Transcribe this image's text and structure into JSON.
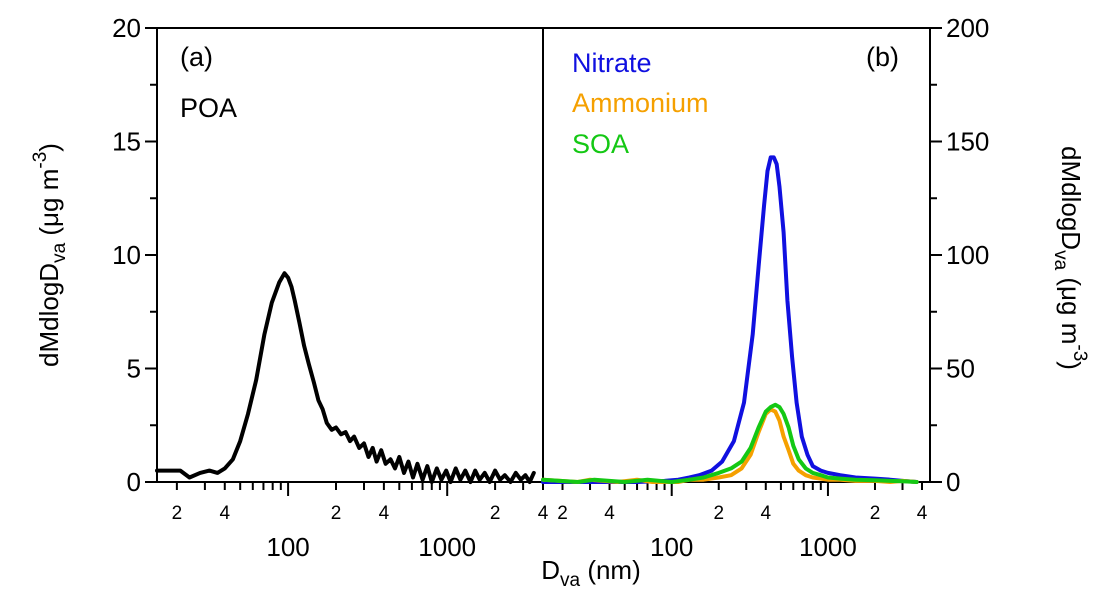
{
  "chart_data": [
    {
      "type": "line",
      "panel_label": "(a)",
      "annotation": "POA",
      "x_scale": "log",
      "xlim": [
        15,
        4000
      ],
      "ylim": [
        0,
        20
      ],
      "yticks": [
        0,
        5,
        10,
        15,
        20
      ],
      "ylabel": {
        "main": "dMdlogD",
        "sub": "va",
        "units_pre": " (μg m",
        "sup": "-3",
        "units_post": ")"
      },
      "x_major_labels": [
        "100",
        "1000"
      ],
      "x_minor_labels": [
        "2",
        "4",
        "2",
        "4",
        "2",
        "4"
      ],
      "series": [
        {
          "name": "POA",
          "color": "#000000",
          "x": [
            15,
            18,
            21,
            24,
            28,
            32,
            36,
            40,
            45,
            50,
            56,
            63,
            71,
            79,
            88,
            95,
            100,
            105,
            110,
            118,
            126,
            135,
            145,
            155,
            165,
            175,
            188,
            200,
            215,
            230,
            245,
            260,
            280,
            300,
            320,
            340,
            360,
            385,
            410,
            440,
            470,
            500,
            535,
            570,
            610,
            650,
            700,
            750,
            800,
            860,
            920,
            985,
            1050,
            1130,
            1210,
            1300,
            1400,
            1500,
            1600,
            1720,
            1850,
            2000,
            2150,
            2300,
            2500,
            2700,
            2900,
            3100,
            3300,
            3500
          ],
          "y": [
            0.5,
            0.5,
            0.5,
            0.2,
            0.4,
            0.5,
            0.4,
            0.6,
            1.0,
            1.8,
            3.0,
            4.5,
            6.5,
            7.9,
            8.8,
            9.2,
            9.0,
            8.6,
            8.0,
            7.0,
            6.0,
            5.2,
            4.4,
            3.6,
            3.2,
            2.6,
            2.3,
            2.4,
            2.1,
            2.2,
            1.8,
            2.0,
            1.5,
            1.7,
            1.1,
            1.5,
            0.9,
            1.4,
            0.8,
            1.0,
            0.6,
            1.1,
            0.4,
            0.9,
            0.2,
            0.8,
            0.1,
            0.7,
            0.0,
            0.6,
            0.1,
            0.5,
            0.0,
            0.6,
            0.1,
            0.5,
            0.0,
            0.5,
            0.1,
            0.4,
            0.0,
            0.5,
            0.1,
            0.3,
            0.0,
            0.4,
            0.1,
            0.3,
            0.0,
            0.4
          ]
        }
      ]
    },
    {
      "type": "line",
      "panel_label": "(b)",
      "x_scale": "log",
      "xlim": [
        15,
        4500
      ],
      "ylim": [
        0,
        200
      ],
      "yticks": [
        0,
        50,
        100,
        150,
        200
      ],
      "ylabel": {
        "main": "dMdlogD",
        "sub": "va",
        "units_pre": " (μg m",
        "sup": "-3",
        "units_post": ")"
      },
      "x_major_labels": [
        "100",
        "1000"
      ],
      "x_minor_labels": [
        "2",
        "4",
        "2",
        "4",
        "2",
        "4"
      ],
      "series": [
        {
          "name": "Nitrate",
          "color": "#1010e0",
          "x": [
            15,
            30,
            60,
            90,
            110,
            130,
            150,
            180,
            210,
            250,
            290,
            330,
            360,
            390,
            410,
            430,
            450,
            470,
            490,
            520,
            550,
            590,
            630,
            680,
            740,
            800,
            900,
            1000,
            1200,
            1500,
            2000,
            2500,
            3000,
            3700
          ],
          "y": [
            0,
            0,
            0,
            0.5,
            1,
            2,
            3,
            5,
            9,
            18,
            35,
            65,
            95,
            122,
            137,
            143,
            143,
            140,
            130,
            110,
            80,
            55,
            35,
            20,
            12,
            7,
            5,
            4,
            3,
            2,
            1.5,
            1,
            0.5,
            0
          ]
        },
        {
          "name": "Ammonium",
          "color": "#f5a000",
          "x": [
            15,
            25,
            30,
            45,
            60,
            75,
            90,
            110,
            130,
            160,
            200,
            240,
            280,
            320,
            360,
            400,
            430,
            460,
            490,
            520,
            560,
            600,
            650,
            720,
            800,
            900,
            1000,
            1200,
            1500,
            2000,
            2500,
            3000,
            3700
          ],
          "y": [
            1,
            0,
            1,
            0,
            1,
            0,
            0,
            0,
            1,
            1,
            2,
            3,
            6,
            12,
            22,
            30,
            32,
            31,
            27,
            20,
            14,
            8,
            5,
            3,
            2,
            1.5,
            1,
            1,
            0.5,
            0.5,
            0,
            0.5,
            0
          ]
        },
        {
          "name": "SOA",
          "color": "#14c814",
          "x": [
            15,
            25,
            32,
            50,
            70,
            100,
            130,
            160,
            200,
            240,
            280,
            320,
            360,
            400,
            430,
            460,
            490,
            520,
            560,
            600,
            650,
            720,
            800,
            900,
            1000,
            1200,
            1500,
            2000,
            2500,
            3000,
            3700
          ],
          "y": [
            1,
            0,
            1,
            0,
            1,
            0,
            1,
            2,
            4,
            6,
            9,
            15,
            24,
            31,
            33,
            34,
            33,
            30,
            24,
            16,
            10,
            6,
            4,
            3,
            2,
            1.5,
            1,
            0.8,
            0.5,
            0.3,
            0
          ]
        }
      ]
    }
  ],
  "xlabel": {
    "main": "D",
    "sub": "va",
    "units": " (nm)"
  }
}
